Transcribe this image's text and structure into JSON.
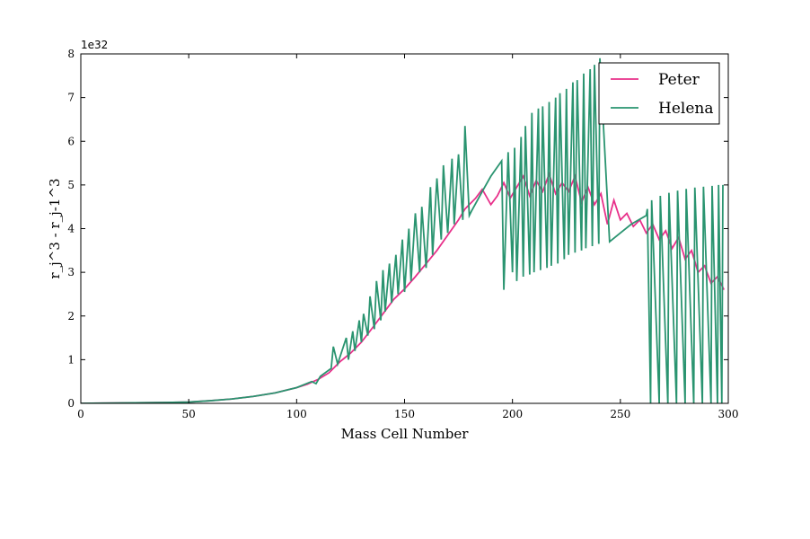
{
  "chart_data": {
    "type": "line",
    "title": "",
    "xlabel": "Mass Cell Number",
    "ylabel": "r_j^3 - r_j-1^3",
    "y_offset_label": "1e32",
    "xlim": [
      0,
      300
    ],
    "ylim": [
      0,
      8
    ],
    "xticks": [
      0,
      50,
      100,
      150,
      200,
      250,
      300
    ],
    "yticks": [
      0,
      1,
      2,
      3,
      4,
      5,
      6,
      7,
      8
    ],
    "grid": false,
    "legend_placement": "top-right",
    "series": [
      {
        "name": "Peter",
        "color": "#e8308a",
        "x": [
          0,
          10,
          20,
          30,
          40,
          50,
          60,
          70,
          80,
          90,
          100,
          105,
          110,
          115,
          120,
          125,
          130,
          135,
          140,
          145,
          150,
          155,
          160,
          165,
          170,
          175,
          178,
          180,
          183,
          186,
          190,
          193,
          196,
          199,
          202,
          205,
          208,
          211,
          214,
          217,
          220,
          223,
          226,
          229,
          232,
          235,
          238,
          241,
          244,
          247,
          250,
          253,
          256,
          259,
          262,
          265,
          268,
          271,
          274,
          277,
          280,
          283,
          286,
          289,
          292,
          295,
          298
        ],
        "y": [
          0,
          0.005,
          0.01,
          0.015,
          0.02,
          0.03,
          0.06,
          0.1,
          0.16,
          0.24,
          0.36,
          0.44,
          0.55,
          0.7,
          0.95,
          1.15,
          1.4,
          1.72,
          2.05,
          2.38,
          2.62,
          2.9,
          3.2,
          3.5,
          3.85,
          4.2,
          4.45,
          4.55,
          4.7,
          4.9,
          4.55,
          4.75,
          5.05,
          4.7,
          4.95,
          5.2,
          4.75,
          5.1,
          4.85,
          5.25,
          4.8,
          5.05,
          4.85,
          5.2,
          4.6,
          4.95,
          4.55,
          4.8,
          4.1,
          4.65,
          4.2,
          4.35,
          4.05,
          4.2,
          3.9,
          4.1,
          3.75,
          3.95,
          3.55,
          3.8,
          3.3,
          3.5,
          3.0,
          3.15,
          2.75,
          2.9,
          2.6
        ]
      },
      {
        "name": "Helena",
        "color": "#2a9470",
        "x": [
          0,
          10,
          20,
          30,
          40,
          50,
          60,
          70,
          80,
          90,
          100,
          107,
          109,
          111,
          116,
          117,
          119,
          121,
          123,
          124,
          126,
          127,
          129,
          130,
          131,
          133,
          134,
          136,
          137,
          139,
          140,
          141,
          143,
          144,
          146,
          147,
          149,
          150,
          152,
          153,
          155,
          157,
          158,
          160,
          162,
          163,
          165,
          167,
          168,
          170,
          172,
          173,
          175,
          177,
          178,
          180,
          181,
          186,
          190,
          195,
          196,
          198,
          200,
          201,
          202,
          204,
          205,
          206,
          208,
          209,
          210,
          212,
          213,
          214,
          216,
          217,
          218,
          220,
          221,
          222,
          224,
          225,
          226,
          228,
          229,
          230,
          232,
          233,
          234,
          236,
          237,
          238,
          240,
          240.5,
          245,
          250,
          255,
          262,
          262.5,
          264,
          264.5,
          268,
          268.5,
          272,
          272.5,
          276,
          276.5,
          280,
          280.5,
          284,
          284.5,
          288,
          288.5,
          292,
          292.5,
          295,
          295.5,
          297,
          297.5
        ],
        "y": [
          0,
          0.005,
          0.01,
          0.015,
          0.02,
          0.03,
          0.06,
          0.1,
          0.16,
          0.24,
          0.36,
          0.5,
          0.45,
          0.62,
          0.8,
          1.3,
          0.9,
          1.2,
          1.5,
          1.0,
          1.65,
          1.2,
          1.9,
          1.4,
          2.05,
          1.55,
          2.45,
          1.7,
          2.8,
          1.9,
          3.05,
          2.1,
          3.2,
          2.3,
          3.4,
          2.5,
          3.75,
          2.55,
          4.0,
          2.8,
          4.35,
          3.0,
          4.5,
          3.1,
          4.95,
          3.4,
          5.15,
          3.75,
          5.45,
          3.9,
          5.6,
          4.1,
          5.7,
          4.2,
          6.35,
          4.3,
          4.4,
          4.85,
          5.2,
          5.55,
          2.6,
          5.75,
          3.0,
          5.85,
          2.8,
          6.1,
          2.9,
          6.35,
          2.95,
          6.65,
          3.0,
          6.75,
          3.05,
          6.8,
          3.1,
          6.9,
          3.15,
          7.0,
          3.2,
          7.1,
          3.3,
          7.2,
          3.4,
          7.35,
          3.45,
          7.4,
          3.5,
          7.55,
          3.55,
          7.65,
          3.6,
          7.75,
          3.65,
          7.9,
          3.7,
          3.9,
          4.1,
          4.3,
          4.45,
          0.0,
          4.65,
          0.0,
          4.75,
          0.0,
          4.82,
          0.0,
          4.87,
          0.0,
          4.91,
          0.0,
          4.94,
          0.0,
          4.96,
          0.0,
          4.98,
          0.0,
          5.0,
          0.0,
          5.0
        ]
      }
    ]
  }
}
